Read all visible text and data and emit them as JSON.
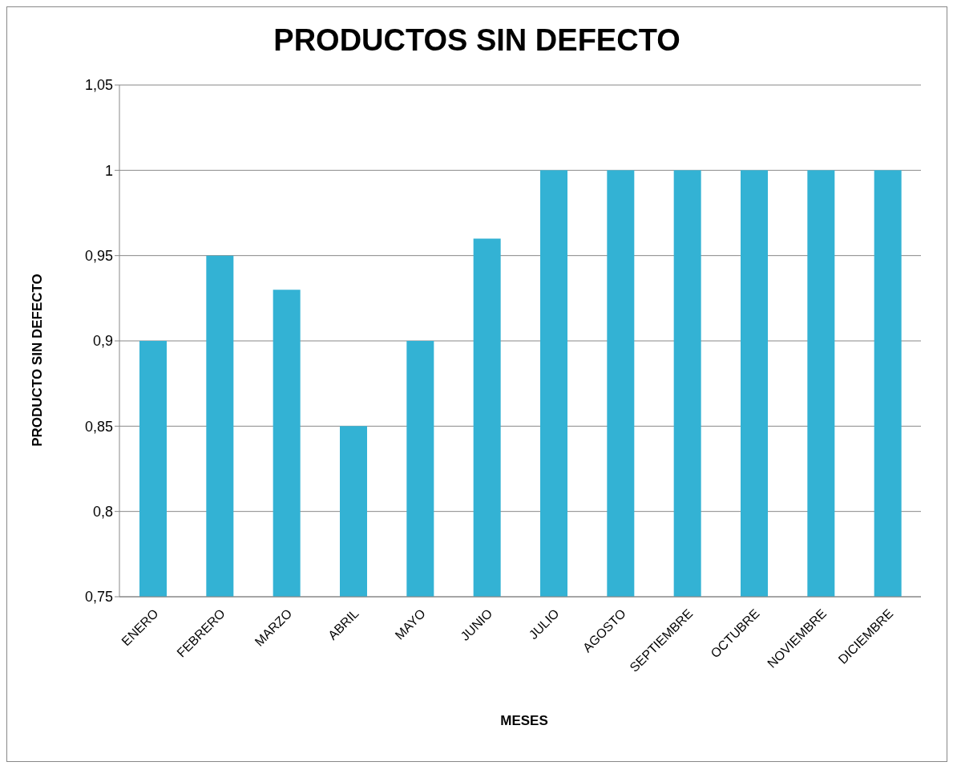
{
  "chart_data": {
    "type": "bar",
    "title": "PRODUCTOS SIN DEFECTO",
    "xlabel": "MESES",
    "ylabel": "PRODUCTO SIN DEFECTO",
    "categories": [
      "ENERO",
      "FEBRERO",
      "MARZO",
      "ABRIL",
      "MAYO",
      "JUNIO",
      "JULIO",
      "AGOSTO",
      "SEPTIEMBRE",
      "OCTUBRE",
      "NOVIEMBRE",
      "DICIEMBRE"
    ],
    "values": [
      0.9,
      0.95,
      0.93,
      0.85,
      0.9,
      0.96,
      1,
      1,
      1,
      1,
      1,
      1
    ],
    "color": "#33b2d4",
    "ylim": [
      0.75,
      1.05
    ],
    "yticks": [
      {
        "value": 0.75,
        "label": "0,75"
      },
      {
        "value": 0.8,
        "label": "0,8"
      },
      {
        "value": 0.85,
        "label": "0,85"
      },
      {
        "value": 0.9,
        "label": "0,9"
      },
      {
        "value": 0.95,
        "label": "0,95"
      },
      {
        "value": 1,
        "label": "1"
      },
      {
        "value": 1.05,
        "label": "1,05"
      }
    ],
    "grid": "y",
    "legend": false
  }
}
